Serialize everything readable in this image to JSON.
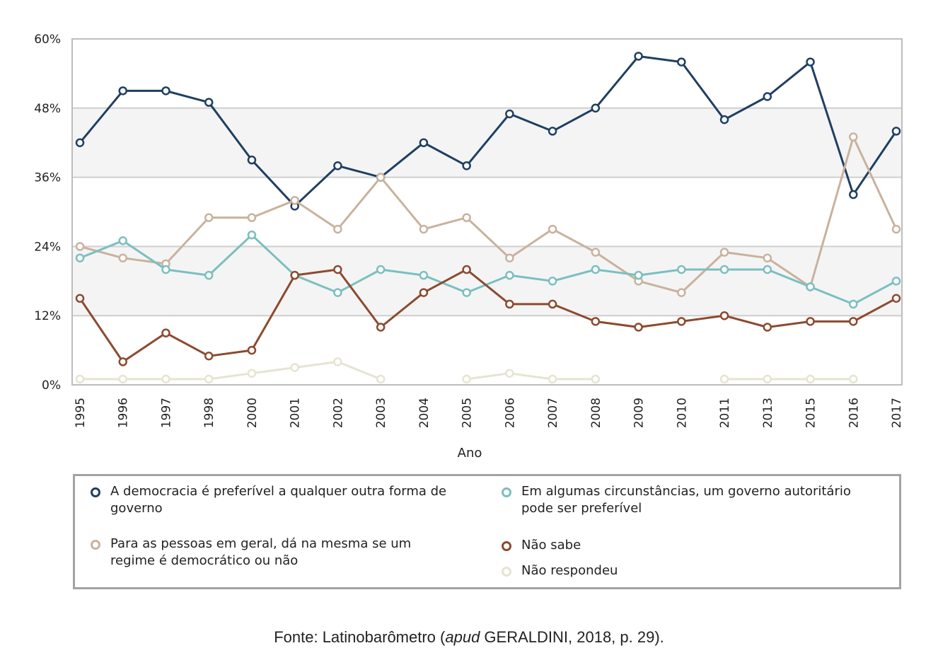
{
  "chart_data": {
    "type": "line",
    "x": [
      "1995",
      "1996",
      "1997",
      "1998",
      "2000",
      "2001",
      "2002",
      "2003",
      "2004",
      "2005",
      "2006",
      "2007",
      "2008",
      "2009",
      "2010",
      "2011",
      "2013",
      "2015",
      "2016",
      "2017"
    ],
    "xlabel": "Ano",
    "ylim": [
      0,
      60
    ],
    "yticks": [
      "0%",
      "12%",
      "24%",
      "36%",
      "48%",
      "60%"
    ],
    "yticks_values": [
      0,
      12,
      24,
      36,
      48,
      60
    ],
    "grid": true,
    "band_colors": [
      "#ffffff",
      "#f4f4f4"
    ],
    "legend_position": "bottom",
    "series": [
      {
        "key": "democracia",
        "name": "A democracia é preferível a qualquer outra forma de governo",
        "color": "#1f3f62",
        "values": [
          42,
          51,
          51,
          49,
          39,
          31,
          38,
          36,
          42,
          38,
          47,
          44,
          48,
          57,
          56,
          46,
          50,
          56,
          33,
          44
        ]
      },
      {
        "key": "indiferente",
        "name": "Para as pessoas em geral, dá na mesma se um regime é democrático ou não",
        "color": "#c9b29d",
        "values": [
          24,
          22,
          21,
          29,
          29,
          32,
          27,
          36,
          27,
          29,
          22,
          27,
          23,
          18,
          16,
          23,
          22,
          17,
          43,
          27
        ]
      },
      {
        "key": "autoritario",
        "name": "Em algumas circunstâncias, um governo autoritário pode ser preferível",
        "color": "#7bbfc0",
        "values": [
          22,
          25,
          20,
          19,
          26,
          19,
          16,
          20,
          19,
          16,
          19,
          18,
          20,
          19,
          20,
          20,
          20,
          17,
          14,
          18
        ]
      },
      {
        "key": "naosabe",
        "name": "Não sabe",
        "color": "#8c4a2f",
        "values": [
          15,
          4,
          9,
          5,
          6,
          19,
          20,
          10,
          16,
          20,
          14,
          14,
          11,
          10,
          11,
          12,
          10,
          11,
          11,
          15
        ]
      },
      {
        "key": "naorespondeu",
        "name": "Não respondeu",
        "color": "#e6e4d2",
        "values": [
          1,
          1,
          1,
          1,
          2,
          3,
          4,
          1,
          null,
          1,
          2,
          1,
          1,
          null,
          null,
          1,
          1,
          1,
          1,
          null
        ]
      }
    ]
  },
  "source": {
    "prefix": "Fonte: Latinobarômetro (",
    "italic": "apud",
    "suffix": " GERALDINI, 2018, p. 29)."
  }
}
